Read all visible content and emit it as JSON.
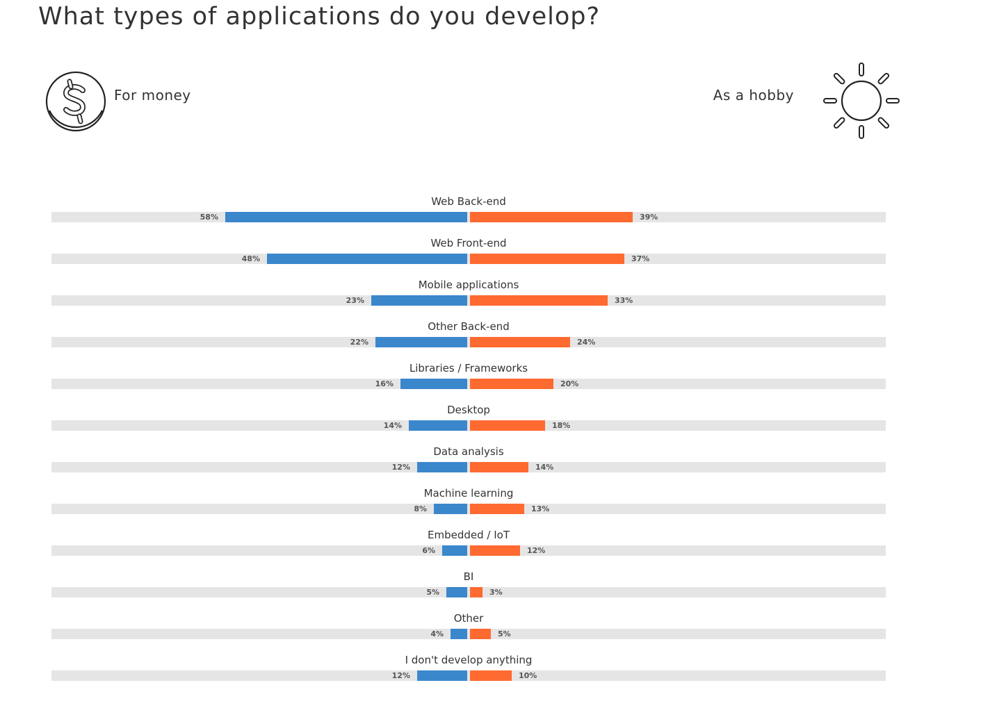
{
  "title": "What types of applications do you develop?",
  "left_label": "For money",
  "right_label": "As a hobby",
  "colors": {
    "money": "#3b87cc",
    "hobby": "#ff6a30",
    "track": "#e5e5e5"
  },
  "chart_data": {
    "type": "bar",
    "orientation": "diverging-horizontal",
    "title": "What types of applications do you develop?",
    "xlim": [
      0,
      100
    ],
    "categories": [
      "Web Back-end",
      "Web Front-end",
      "Mobile applications",
      "Other Back-end",
      "Libraries / Frameworks",
      "Desktop",
      "Data analysis",
      "Machine learning",
      "Embedded / IoT",
      "BI",
      "Other",
      "I don't develop anything"
    ],
    "series": [
      {
        "name": "For money",
        "values": [
          58,
          48,
          23,
          22,
          16,
          14,
          12,
          8,
          6,
          5,
          4,
          12
        ]
      },
      {
        "name": "As a hobby",
        "values": [
          39,
          37,
          33,
          24,
          20,
          18,
          14,
          13,
          12,
          3,
          5,
          10
        ]
      }
    ],
    "value_format": "{v}%"
  }
}
